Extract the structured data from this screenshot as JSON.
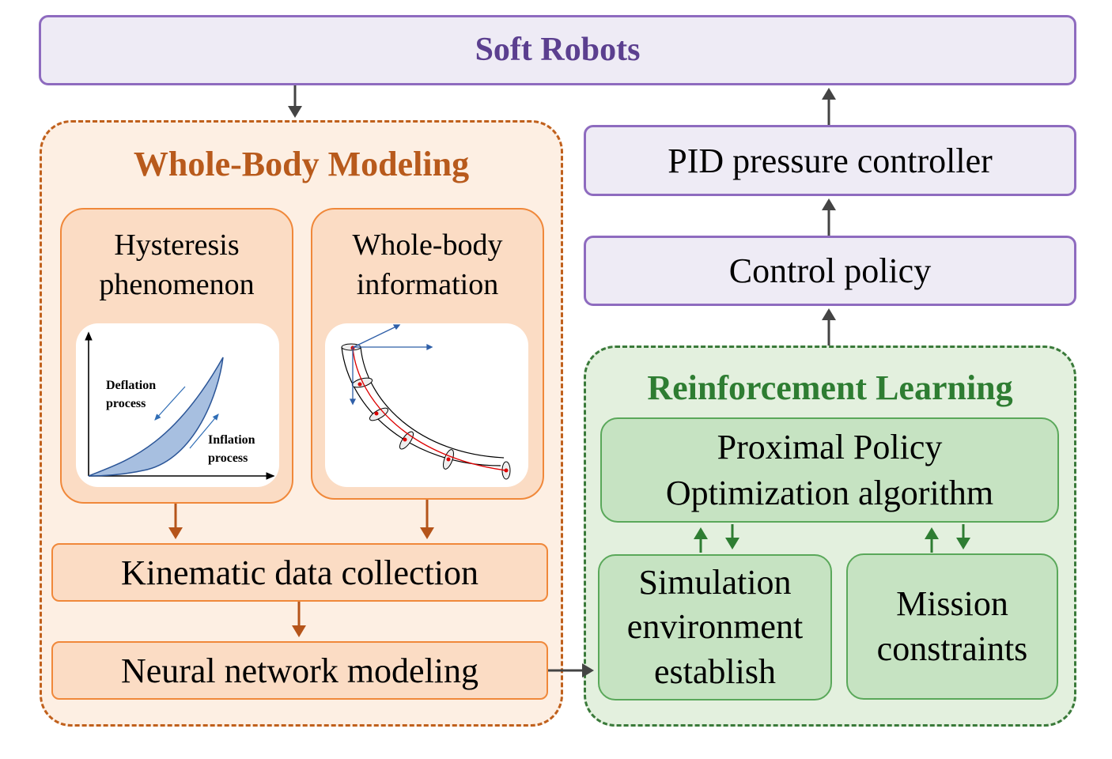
{
  "top": {
    "title": "Soft Robots"
  },
  "modeling": {
    "title": "Whole-Body Modeling",
    "hysteresis": {
      "title": "Hysteresis phenomenon",
      "deflation_label": [
        "Deflation",
        "process"
      ],
      "inflation_label": [
        "Inflation",
        "process"
      ]
    },
    "wholebody": {
      "title": "Whole-body information"
    },
    "kinematic": "Kinematic data collection",
    "neural": "Neural network modeling"
  },
  "control": {
    "pid": "PID pressure controller",
    "policy": "Control policy"
  },
  "rl": {
    "title": "Reinforcement Learning",
    "ppo": "Proximal Policy Optimization algorithm",
    "simulation": "Simulation environment establish",
    "mission": "Mission constraints"
  },
  "colors": {
    "purple": "#8e6bbf",
    "orange": "#c0601c",
    "green": "#2e7d32"
  }
}
